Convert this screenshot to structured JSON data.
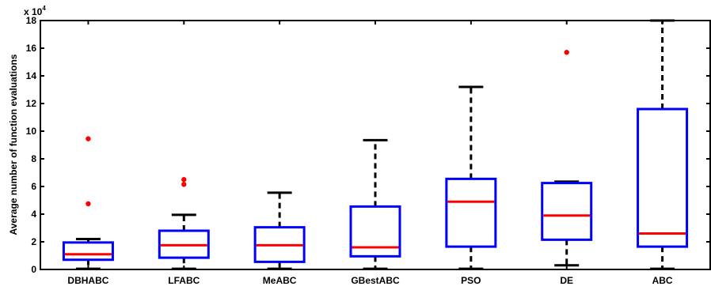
{
  "chart_data": {
    "type": "boxplot",
    "ylabel": "Average number of function evaluations",
    "y_multiplier_label": "x 10",
    "y_multiplier_exponent": "4",
    "ylim": [
      0,
      18
    ],
    "yticks": [
      "0",
      "2",
      "4",
      "6",
      "8",
      "10",
      "12",
      "14",
      "16",
      "18"
    ],
    "grid": false,
    "categories": [
      "DBHABC",
      "LFABC",
      "MeABC",
      "GBestABC",
      "PSO",
      "DE",
      "ABC"
    ],
    "boxes": [
      {
        "whisker_low": 0.05,
        "q1": 0.7,
        "median": 1.1,
        "q3": 1.95,
        "whisker_high": 2.2,
        "outliers": [
          4.75,
          9.45
        ]
      },
      {
        "whisker_low": 0.05,
        "q1": 0.85,
        "median": 1.75,
        "q3": 2.8,
        "whisker_high": 3.95,
        "outliers": [
          6.15,
          6.5
        ]
      },
      {
        "whisker_low": 0.05,
        "q1": 0.55,
        "median": 1.75,
        "q3": 3.05,
        "whisker_high": 5.55,
        "outliers": []
      },
      {
        "whisker_low": 0.05,
        "q1": 0.95,
        "median": 1.6,
        "q3": 4.55,
        "whisker_high": 9.35,
        "outliers": []
      },
      {
        "whisker_low": 0.05,
        "q1": 1.65,
        "median": 4.9,
        "q3": 6.55,
        "whisker_high": 13.2,
        "outliers": []
      },
      {
        "whisker_low": 0.3,
        "q1": 2.15,
        "median": 3.9,
        "q3": 6.25,
        "whisker_high": 6.35,
        "outliers": [
          15.7
        ]
      },
      {
        "whisker_low": 0.05,
        "q1": 1.65,
        "median": 2.6,
        "q3": 11.6,
        "whisker_high": 18.0,
        "outliers": []
      }
    ],
    "colors": {
      "box": "#0000ff",
      "median": "#ff0000",
      "outlier": "#ff0000",
      "whisker": "#000000"
    }
  }
}
